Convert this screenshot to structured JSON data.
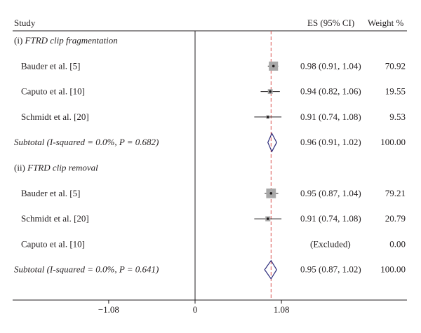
{
  "chart_data": {
    "type": "forest",
    "title": "",
    "headers": {
      "study": "Study",
      "es": "ES (95% CI)",
      "weight": "Weight %"
    },
    "xlim": [
      -1.6,
      1.6
    ],
    "null_line": 0,
    "reference_line": 0.95,
    "x_ticks": [
      {
        "value": -1.08,
        "label": "−1.08"
      },
      {
        "value": 0,
        "label": "0"
      },
      {
        "value": 1.08,
        "label": "1.08"
      }
    ],
    "rows": [
      {
        "kind": "group",
        "label_prefix": "(i) ",
        "label": "FTRD clip fragmentation"
      },
      {
        "kind": "study",
        "label": "Bauder et al. [5]",
        "es": 0.98,
        "lo": 0.91,
        "hi": 1.04,
        "es_text": "0.98 (0.91, 1.04)",
        "weight": "70.92",
        "w": 70.92
      },
      {
        "kind": "study",
        "label": "Caputo et al. [10]",
        "es": 0.94,
        "lo": 0.82,
        "hi": 1.06,
        "es_text": "0.94 (0.82, 1.06)",
        "weight": "19.55",
        "w": 19.55
      },
      {
        "kind": "study",
        "label": "Schmidt et al. [20]",
        "es": 0.91,
        "lo": 0.74,
        "hi": 1.08,
        "es_text": "0.91 (0.74, 1.08)",
        "weight": "9.53",
        "w": 9.53
      },
      {
        "kind": "subtotal",
        "label": "Subtotal (I-squared = 0.0%, P = 0.682)",
        "es": 0.96,
        "lo": 0.91,
        "hi": 1.02,
        "es_text": "0.96 (0.91, 1.02)",
        "weight": "100.00"
      },
      {
        "kind": "group",
        "label_prefix": "(ii) ",
        "label": "FTRD clip removal"
      },
      {
        "kind": "study",
        "label": "Bauder et al. [5]",
        "es": 0.95,
        "lo": 0.87,
        "hi": 1.04,
        "es_text": "0.95 (0.87, 1.04)",
        "weight": "79.21",
        "w": 79.21
      },
      {
        "kind": "study",
        "label": "Schmidt et al. [20]",
        "es": 0.91,
        "lo": 0.74,
        "hi": 1.08,
        "es_text": "0.91 (0.74, 1.08)",
        "weight": "20.79",
        "w": 20.79
      },
      {
        "kind": "excluded",
        "label": "Caputo et al. [10]",
        "es_text": "(Excluded)",
        "weight": "0.00"
      },
      {
        "kind": "subtotal",
        "label": "Subtotal (I-squared = 0.0%, P = 0.641)",
        "es": 0.95,
        "lo": 0.87,
        "hi": 1.02,
        "es_text": "0.95 (0.87, 1.02)",
        "weight": "100.00"
      }
    ],
    "colors": {
      "text": "#231f20",
      "box": "#a8a8a8",
      "line": "#231f20",
      "diamond": "#2b2a7a",
      "reference_line": "#d9534f"
    }
  }
}
